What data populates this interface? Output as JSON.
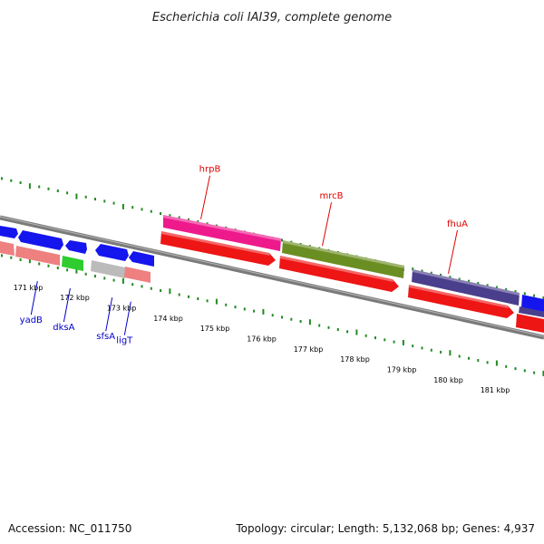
{
  "title": "Escherichia coli IAI39, complete genome",
  "accession": "Accession: NC_011750",
  "summary": "Topology: circular; Length: 5,132,068 bp; Genes: 4,937",
  "colors": {
    "backbone": "#808080",
    "ticks": "#228b22",
    "label_outer": "#e00000",
    "label_inner": "#0000cc",
    "blue": "#1515ee",
    "red": "#ee1515",
    "salmon": "#ee8080",
    "green": "#2ecc2e",
    "gray": "#bbbbbb",
    "pink": "#ee1a8c",
    "olive": "#6b8e23",
    "slate": "#4a3f8c"
  },
  "scale": [
    {
      "kbp": 171,
      "label": "171 kbp"
    },
    {
      "kbp": 172,
      "label": "172 kbp"
    },
    {
      "kbp": 173,
      "label": "173 kbp"
    },
    {
      "kbp": 174,
      "label": "174 kbp"
    },
    {
      "kbp": 175,
      "label": "175 kbp"
    },
    {
      "kbp": 176,
      "label": "176 kbp"
    },
    {
      "kbp": 177,
      "label": "177 kbp"
    },
    {
      "kbp": 178,
      "label": "178 kbp"
    },
    {
      "kbp": 179,
      "label": "179 kbp"
    },
    {
      "kbp": 180,
      "label": "180 kbp"
    },
    {
      "kbp": 181,
      "label": "181 kbp"
    }
  ],
  "outer_labels": [
    {
      "name": "hrpB",
      "kbp": 174.7
    },
    {
      "name": "mrcB",
      "kbp": 177.3
    },
    {
      "name": "fhuA",
      "kbp": 180.0
    }
  ],
  "inner_labels": [
    {
      "name": "yadB",
      "kbp": 171.2
    },
    {
      "name": "dksA",
      "kbp": 171.9
    },
    {
      "name": "sfsA",
      "kbp": 172.8
    },
    {
      "name": "ligT",
      "kbp": 173.2
    }
  ]
}
